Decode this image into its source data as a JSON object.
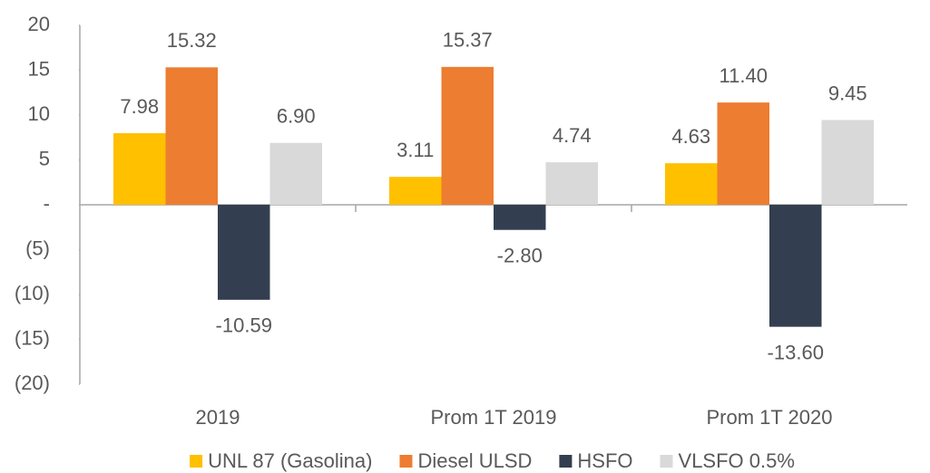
{
  "chart_data": {
    "type": "bar",
    "categories": [
      "2019",
      "Prom 1T 2019",
      "Prom 1T 2020"
    ],
    "series": [
      {
        "name": "UNL 87 (Gasolina)",
        "color": "#ffc000",
        "values": [
          7.98,
          3.11,
          4.63
        ],
        "value_labels": [
          "7.98",
          "3.11",
          "4.63"
        ]
      },
      {
        "name": "Diesel ULSD",
        "color": "#ed7d31",
        "values": [
          15.32,
          15.37,
          11.4
        ],
        "value_labels": [
          "15.32",
          "15.37",
          "11.40"
        ]
      },
      {
        "name": "HSFO",
        "color": "#333f50",
        "values": [
          -10.59,
          -2.8,
          -13.6
        ],
        "value_labels": [
          "-10.59",
          "-2.80",
          "-13.60"
        ]
      },
      {
        "name": "VLSFO 0.5%",
        "color": "#d9d9d9",
        "values": [
          6.9,
          4.74,
          9.45
        ],
        "value_labels": [
          "6.90",
          "4.74",
          "9.45"
        ]
      }
    ],
    "ylim": [
      -20,
      20
    ],
    "yticks": [
      20,
      15,
      10,
      5,
      {
        "value": 0,
        "label": "-"
      },
      {
        "value": -5,
        "label": "(5)"
      },
      {
        "value": -10,
        "label": "(10)"
      },
      {
        "value": -15,
        "label": "(15)"
      },
      {
        "value": -20,
        "label": "(20)"
      }
    ],
    "legend": "bottom"
  }
}
